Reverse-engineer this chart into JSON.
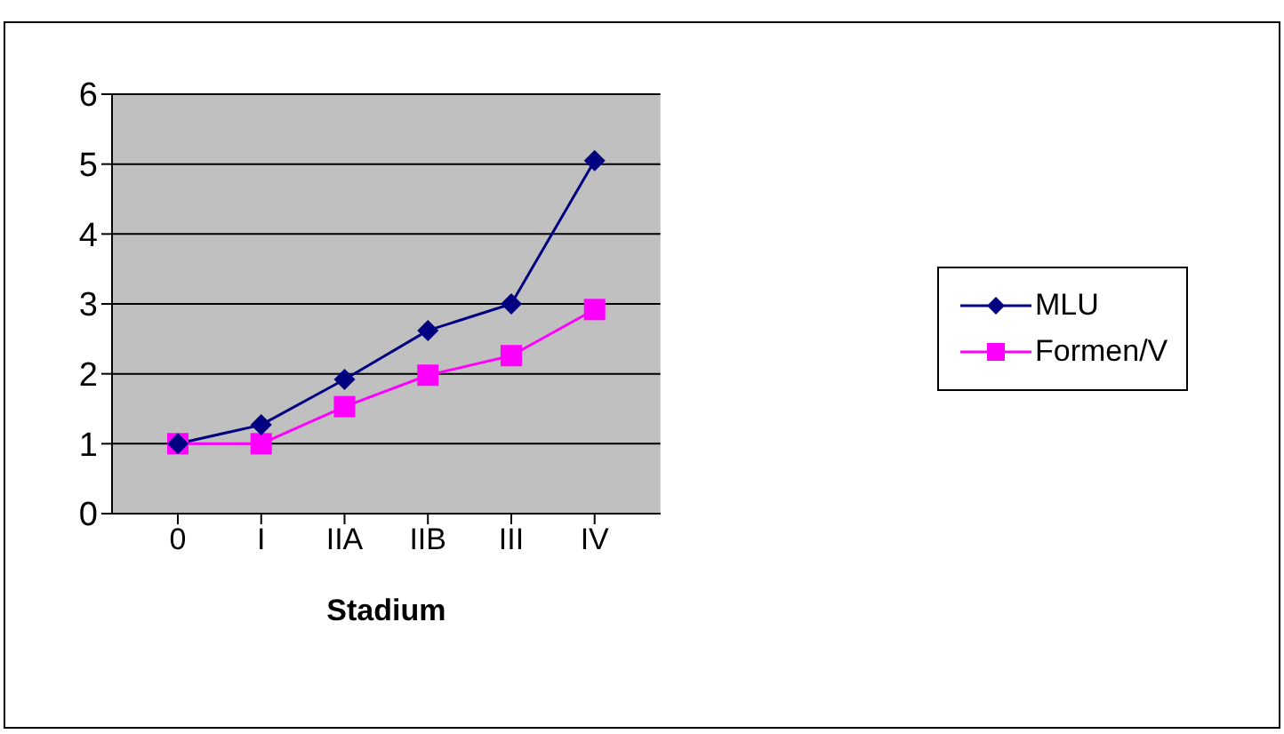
{
  "chart_data": {
    "type": "line",
    "xlabel": "Stadium",
    "categories": [
      "0",
      "I",
      "IIA",
      "IIB",
      "III",
      "IV"
    ],
    "series": [
      {
        "name": "MLU",
        "color": "#000080",
        "marker": "diamond",
        "values": [
          1.0,
          1.27,
          1.92,
          2.62,
          3.0,
          5.05
        ]
      },
      {
        "name": "Formen/V",
        "color": "#ff00ff",
        "marker": "square",
        "values": [
          1.0,
          1.0,
          1.53,
          1.98,
          2.26,
          2.92
        ]
      }
    ],
    "ylim": [
      0,
      6
    ],
    "yticks": [
      0,
      1,
      2,
      3,
      4,
      5,
      6
    ],
    "grid": "y",
    "legend": "right",
    "line_style": "solid"
  }
}
